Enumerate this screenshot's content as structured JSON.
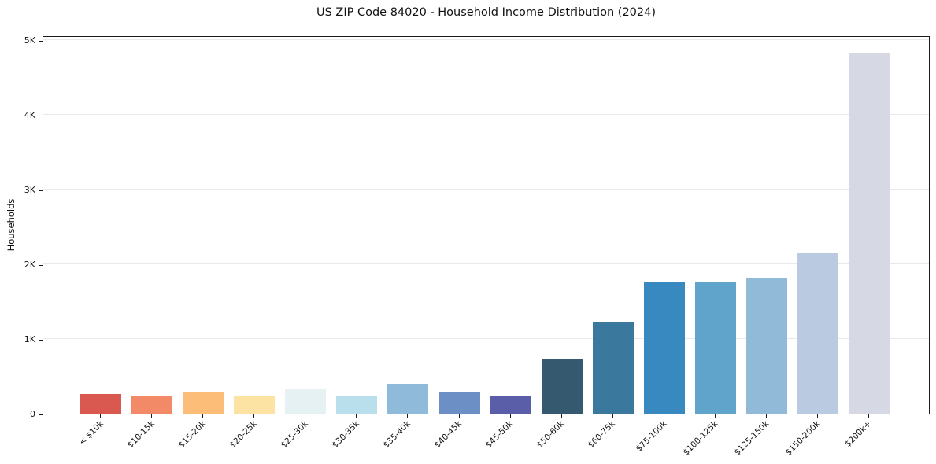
{
  "chart_data": {
    "type": "bar",
    "title": "US ZIP Code 84020 - Household Income Distribution (2024)",
    "xlabel": "",
    "ylabel": "Households",
    "categories": [
      "< $10k",
      "$10-15k",
      "$15-20k",
      "$20-25k",
      "$25-30k",
      "$30-35k",
      "$35-40k",
      "$40-45k",
      "$45-50k",
      "$50-60k",
      "$60-75k",
      "$75-100k",
      "$100-125k",
      "$125-150k",
      "$150-200k",
      "$200k+"
    ],
    "values": [
      260,
      245,
      285,
      240,
      340,
      245,
      405,
      290,
      245,
      735,
      1235,
      1760,
      1755,
      1815,
      2150,
      4825
    ],
    "bar_colors": [
      "#d95850",
      "#f28a68",
      "#fbbd77",
      "#fde3a3",
      "#e6f1f4",
      "#b9deec",
      "#8fbada",
      "#6c8fc5",
      "#5a5ea9",
      "#35596f",
      "#3a789e",
      "#3789c0",
      "#60a4cc",
      "#91b9d8",
      "#b9cae1",
      "#d6d8e4"
    ],
    "ylim": [
      0,
      5065
    ],
    "yticks": [
      {
        "value": 0,
        "label": "0"
      },
      {
        "value": 1000,
        "label": "1K"
      },
      {
        "value": 2000,
        "label": "2K"
      },
      {
        "value": 3000,
        "label": "3K"
      },
      {
        "value": 4000,
        "label": "4K"
      },
      {
        "value": 5000,
        "label": "5K"
      }
    ],
    "grid": "horizontal",
    "legend": "none"
  }
}
